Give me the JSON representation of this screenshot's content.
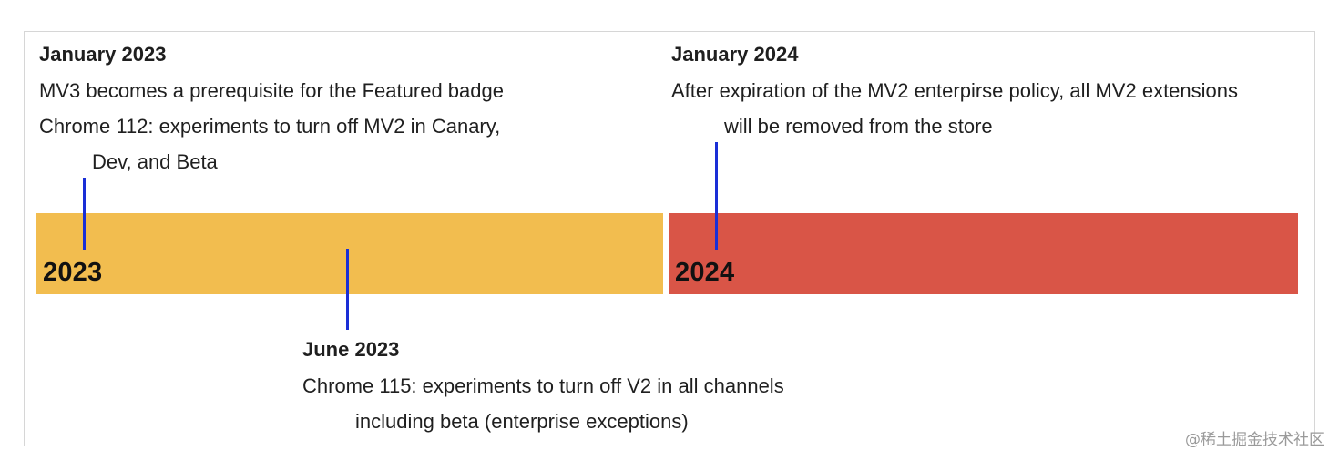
{
  "colors": {
    "bar_2023": "#f2bd4f",
    "bar_2024": "#d95547",
    "tick": "#1a2fd6",
    "frame_border": "#d6d6d6"
  },
  "bars": {
    "y2023": "2023",
    "y2024": "2024"
  },
  "events": {
    "jan2023": {
      "title": "January 2023",
      "lines": [
        "MV3 becomes a prerequisite for the Featured badge",
        "Chrome 112: experiments to turn off MV2 in Canary,",
        "Dev, and Beta"
      ]
    },
    "jun2023": {
      "title": "June 2023",
      "lines": [
        "Chrome 115: experiments to turn off V2 in all channels",
        "including beta (enterprise exceptions)"
      ]
    },
    "jan2024": {
      "title": "January 2024",
      "lines": [
        "After expiration of the MV2 enterpirse policy, all MV2 extensions",
        "will be removed from the store"
      ]
    }
  },
  "watermark": "@稀土掘金技术社区"
}
